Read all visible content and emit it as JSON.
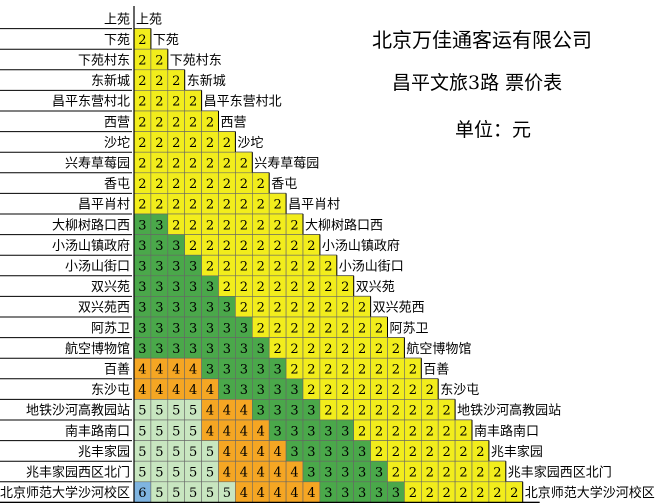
{
  "header": {
    "company": "北京万佳通客运有限公司",
    "route_title": "昌平文旅3路  票价表",
    "unit": "单位：元"
  },
  "stations": [
    "上苑",
    "下苑",
    "下苑村东",
    "东新城",
    "昌平东营村北",
    "西营",
    "沙坨",
    "兴寿草莓园",
    "香屯",
    "昌平肖村",
    "大柳树路口西",
    "小汤山镇政府",
    "小汤山街口",
    "双兴苑",
    "双兴苑西",
    "阿苏卫",
    "航空博物馆",
    "百善",
    "东沙屯",
    "地铁沙河高教园站",
    "南丰路南口",
    "兆丰家园",
    "兆丰家园西区北门",
    "北京师范大学沙河校区"
  ],
  "fares": [
    [],
    [
      2
    ],
    [
      2,
      2
    ],
    [
      2,
      2,
      2
    ],
    [
      2,
      2,
      2,
      2
    ],
    [
      2,
      2,
      2,
      2,
      2
    ],
    [
      2,
      2,
      2,
      2,
      2,
      2
    ],
    [
      2,
      2,
      2,
      2,
      2,
      2,
      2
    ],
    [
      2,
      2,
      2,
      2,
      2,
      2,
      2,
      2
    ],
    [
      2,
      2,
      2,
      2,
      2,
      2,
      2,
      2,
      2
    ],
    [
      3,
      3,
      2,
      2,
      2,
      2,
      2,
      2,
      2,
      2
    ],
    [
      3,
      3,
      3,
      2,
      2,
      2,
      2,
      2,
      2,
      2,
      2
    ],
    [
      3,
      3,
      3,
      3,
      2,
      2,
      2,
      2,
      2,
      2,
      2,
      2
    ],
    [
      3,
      3,
      3,
      3,
      3,
      2,
      2,
      2,
      2,
      2,
      2,
      2,
      2
    ],
    [
      3,
      3,
      3,
      3,
      3,
      3,
      2,
      2,
      2,
      2,
      2,
      2,
      2,
      2
    ],
    [
      3,
      3,
      3,
      3,
      3,
      3,
      3,
      2,
      2,
      2,
      2,
      2,
      2,
      2,
      2
    ],
    [
      3,
      3,
      3,
      3,
      3,
      3,
      3,
      3,
      2,
      2,
      2,
      2,
      2,
      2,
      2,
      2
    ],
    [
      4,
      4,
      4,
      4,
      3,
      3,
      3,
      3,
      3,
      2,
      2,
      2,
      2,
      2,
      2,
      2,
      2
    ],
    [
      4,
      4,
      4,
      4,
      4,
      3,
      3,
      3,
      3,
      3,
      2,
      2,
      2,
      2,
      2,
      2,
      2,
      2
    ],
    [
      5,
      5,
      5,
      5,
      4,
      4,
      4,
      3,
      3,
      3,
      3,
      2,
      2,
      2,
      2,
      2,
      2,
      2,
      2
    ],
    [
      5,
      5,
      5,
      5,
      4,
      4,
      4,
      4,
      3,
      3,
      3,
      3,
      3,
      2,
      2,
      2,
      2,
      2,
      2,
      2
    ],
    [
      5,
      5,
      5,
      5,
      5,
      4,
      4,
      4,
      4,
      3,
      3,
      3,
      3,
      3,
      2,
      2,
      2,
      2,
      2,
      2,
      2
    ],
    [
      5,
      5,
      5,
      5,
      5,
      4,
      4,
      4,
      4,
      4,
      3,
      3,
      3,
      3,
      3,
      2,
      2,
      2,
      2,
      2,
      2,
      2
    ],
    [
      6,
      5,
      5,
      5,
      5,
      5,
      4,
      4,
      4,
      4,
      4,
      3,
      3,
      3,
      3,
      3,
      2,
      2,
      2,
      2,
      2,
      2,
      2
    ]
  ],
  "colors": {
    "2": "#f2ed1c",
    "3": "#4aa84a",
    "4": "#f5a623",
    "5": "#c8e6c0",
    "6": "#7fb4e0"
  }
}
